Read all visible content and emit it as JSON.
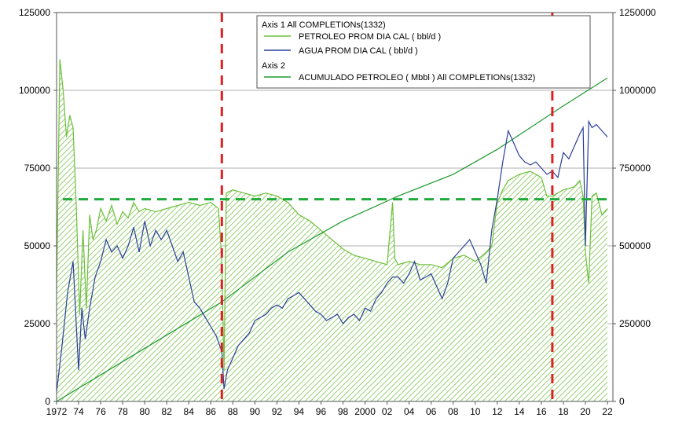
{
  "chart_data": {
    "type": "line",
    "legend": {
      "placement": "top-right",
      "axis1_header": "Axis 1  All COMPLETIONs(1332)",
      "axis2_header": "Axis 2",
      "entries": [
        "PETROLEO PROM DIA CAL ( bbl/d )",
        "AGUA  PROM DIA CAL ( bbl/d )",
        "ACUMULADO PETROLEO ( Mbbl ) All COMPLETIONs(1332)"
      ]
    },
    "xlim": [
      1972,
      2022.5
    ],
    "ylim": [
      0,
      125000
    ],
    "y2lim": [
      0,
      1250000
    ],
    "x_ticks": [
      "1972",
      "74",
      "76",
      "78",
      "80",
      "82",
      "84",
      "86",
      "88",
      "90",
      "92",
      "94",
      "96",
      "98",
      "2000",
      "02",
      "04",
      "06",
      "08",
      "10",
      "12",
      "14",
      "16",
      "18",
      "20",
      "22"
    ],
    "y_ticks": [
      "0",
      "25000",
      "50000",
      "75000",
      "100000",
      "125000"
    ],
    "y2_ticks": [
      "0",
      "250000",
      "500000",
      "750000",
      "1000000",
      "1250000"
    ],
    "grid": "horizontal",
    "colors": {
      "petroleo": "#6cbf3a",
      "agua": "#2b3f9a",
      "acumulado": "#1f9a2f",
      "hatch": "#7cc44e",
      "vline": "#e02020",
      "hline": "#1faa3a"
    },
    "reference_lines": {
      "vertical_dashed_x": [
        1987.0,
        2017.0
      ],
      "horizontal_dashed_y": 65000
    },
    "series": [
      {
        "name": "PETROLEO PROM DIA CAL ( bbl/d )",
        "axis": 1,
        "x": [
          1972.0,
          1972.3,
          1972.6,
          1972.9,
          1973.2,
          1973.5,
          1973.8,
          1974.1,
          1974.4,
          1974.7,
          1975.0,
          1975.3,
          1975.6,
          1976.0,
          1976.5,
          1977.0,
          1977.5,
          1978.0,
          1978.5,
          1979.0,
          1979.5,
          1980.0,
          1981.0,
          1982.0,
          1983.0,
          1984.0,
          1985.0,
          1986.0,
          1986.7,
          1987.0,
          1987.2,
          1987.4,
          1988.0,
          1989.0,
          1990.0,
          1991.0,
          1992.0,
          1993.0,
          1994.0,
          1995.0,
          1996.0,
          1997.0,
          1998.0,
          1999.0,
          2000.0,
          2001.0,
          2002.0,
          2002.5,
          2002.7,
          2003.0,
          2004.0,
          2005.0,
          2006.0,
          2007.0,
          2008.0,
          2009.0,
          2010.0,
          2011.0,
          2011.5,
          2012.0,
          2012.5,
          2013.0,
          2014.0,
          2015.0,
          2016.0,
          2016.5,
          2017.0,
          2017.5,
          2018.0,
          2019.0,
          2019.5,
          2019.8,
          2020.0,
          2020.3,
          2020.6,
          2021.0,
          2021.5,
          2022.0
        ],
        "y": [
          35000,
          110000,
          100000,
          85000,
          92000,
          88000,
          62000,
          28000,
          55000,
          30000,
          60000,
          52000,
          55000,
          62000,
          58000,
          63000,
          57000,
          61000,
          59000,
          64000,
          61000,
          62000,
          61000,
          62000,
          63000,
          64000,
          63000,
          64000,
          62000,
          45000,
          10000,
          67000,
          68000,
          67000,
          66000,
          67000,
          66000,
          64000,
          60000,
          58000,
          55000,
          52000,
          49000,
          47000,
          46000,
          45000,
          44000,
          64000,
          46000,
          44000,
          45000,
          44000,
          44000,
          43000,
          46000,
          47000,
          45000,
          48000,
          50000,
          64000,
          68000,
          71000,
          73000,
          74000,
          72000,
          66000,
          66000,
          67000,
          68000,
          69000,
          71000,
          66000,
          48000,
          38000,
          66000,
          67000,
          60000,
          62000
        ]
      },
      {
        "name": "AGUA  PROM DIA CAL ( bbl/d )",
        "axis": 1,
        "x": [
          1972.0,
          1972.5,
          1973.0,
          1973.5,
          1974.0,
          1974.3,
          1974.6,
          1975.0,
          1975.5,
          1976.0,
          1976.5,
          1977.0,
          1977.5,
          1978.0,
          1978.5,
          1979.0,
          1979.5,
          1980.0,
          1980.5,
          1981.0,
          1981.5,
          1982.0,
          1982.5,
          1983.0,
          1983.5,
          1984.0,
          1984.5,
          1985.0,
          1985.5,
          1986.0,
          1986.5,
          1987.0,
          1987.2,
          1987.5,
          1988.0,
          1988.5,
          1989.0,
          1989.5,
          1990.0,
          1990.5,
          1991.0,
          1991.5,
          1992.0,
          1992.5,
          1993.0,
          1993.5,
          1994.0,
          1994.5,
          1995.0,
          1995.5,
          1996.0,
          1996.5,
          1997.0,
          1997.5,
          1998.0,
          1998.5,
          1999.0,
          1999.5,
          2000.0,
          2000.5,
          2001.0,
          2001.5,
          2002.0,
          2002.5,
          2003.0,
          2003.5,
          2004.0,
          2004.5,
          2005.0,
          2005.5,
          2006.0,
          2006.5,
          2007.0,
          2007.5,
          2008.0,
          2008.5,
          2009.0,
          2009.5,
          2010.0,
          2010.5,
          2011.0,
          2011.5,
          2012.0,
          2012.5,
          2013.0,
          2013.5,
          2014.0,
          2014.5,
          2015.0,
          2015.5,
          2016.0,
          2016.5,
          2017.0,
          2017.5,
          2018.0,
          2018.5,
          2019.0,
          2019.5,
          2019.8,
          2020.0,
          2020.3,
          2020.6,
          2021.0,
          2021.5,
          2022.0
        ],
        "y": [
          3000,
          18000,
          35000,
          45000,
          10000,
          30000,
          20000,
          30000,
          40000,
          45000,
          52000,
          48000,
          50000,
          46000,
          50000,
          56000,
          48000,
          58000,
          50000,
          55000,
          52000,
          55000,
          50000,
          45000,
          48000,
          40000,
          32000,
          30000,
          27000,
          24000,
          21000,
          16000,
          4000,
          10000,
          14000,
          18000,
          20000,
          22000,
          26000,
          27000,
          28000,
          30000,
          31000,
          30000,
          33000,
          34000,
          35000,
          33000,
          31000,
          29000,
          28000,
          26000,
          27000,
          28000,
          25000,
          27000,
          28000,
          26000,
          30000,
          29000,
          33000,
          35000,
          38000,
          40000,
          40000,
          38000,
          41000,
          45000,
          39000,
          40000,
          41000,
          37000,
          33000,
          38000,
          46000,
          48000,
          50000,
          52000,
          48000,
          44000,
          38000,
          55000,
          65000,
          77000,
          87000,
          83000,
          79000,
          77000,
          76000,
          77000,
          75000,
          73000,
          74000,
          72000,
          80000,
          78000,
          82000,
          86000,
          88000,
          50000,
          90000,
          88000,
          89000,
          87000,
          85000
        ]
      },
      {
        "name": "ACUMULADO PETROLEO ( Mbbl ) All COMPLETIONs(1332)",
        "axis": 2,
        "x": [
          1972.0,
          1987.0,
          1993.0,
          1998.0,
          2003.0,
          2008.0,
          2012.0,
          2015.0,
          2018.0,
          2022.0
        ],
        "y": [
          0,
          320000,
          480000,
          580000,
          660000,
          730000,
          810000,
          880000,
          950000,
          1040000
        ]
      }
    ]
  }
}
